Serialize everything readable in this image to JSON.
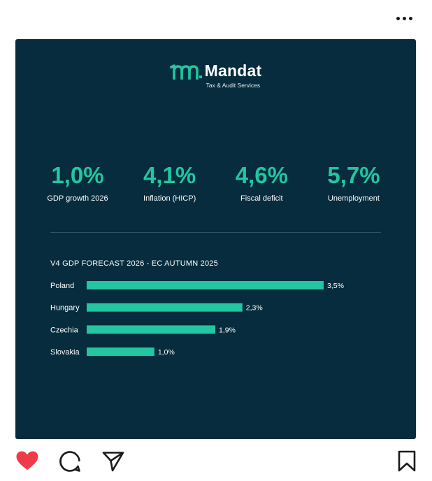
{
  "brand": {
    "name": "Mandat",
    "tagline": "Tax & Audit Services",
    "accent_color": "#23c6a1",
    "background_color": "#062c3d"
  },
  "kpis": [
    {
      "value": "1,0%",
      "label": "GDP growth 2026"
    },
    {
      "value": "4,1%",
      "label": "Inflation (HICP)"
    },
    {
      "value": "4,6%",
      "label": "Fiscal deficit"
    },
    {
      "value": "5,7%",
      "label": "Unemployment"
    }
  ],
  "chart_data": {
    "type": "bar",
    "orientation": "horizontal",
    "title": "V4 GDP FORECAST 2026 - EC AUTUMN 2025",
    "categories": [
      "Poland",
      "Hungary",
      "Czechia",
      "Slovakia"
    ],
    "values": [
      3.5,
      2.3,
      1.9,
      1.0
    ],
    "value_labels": [
      "3,5%",
      "2,3%",
      "1,9%",
      "1,0%"
    ],
    "xlim": [
      0,
      3.5
    ],
    "grid": false,
    "bar_color": "#23c6a1"
  },
  "actions": {
    "like": "heart-icon",
    "comment": "comment-icon",
    "share": "send-icon",
    "save": "bookmark-icon",
    "more": "more-icon",
    "liked": true,
    "like_color": "#ef3a48"
  }
}
